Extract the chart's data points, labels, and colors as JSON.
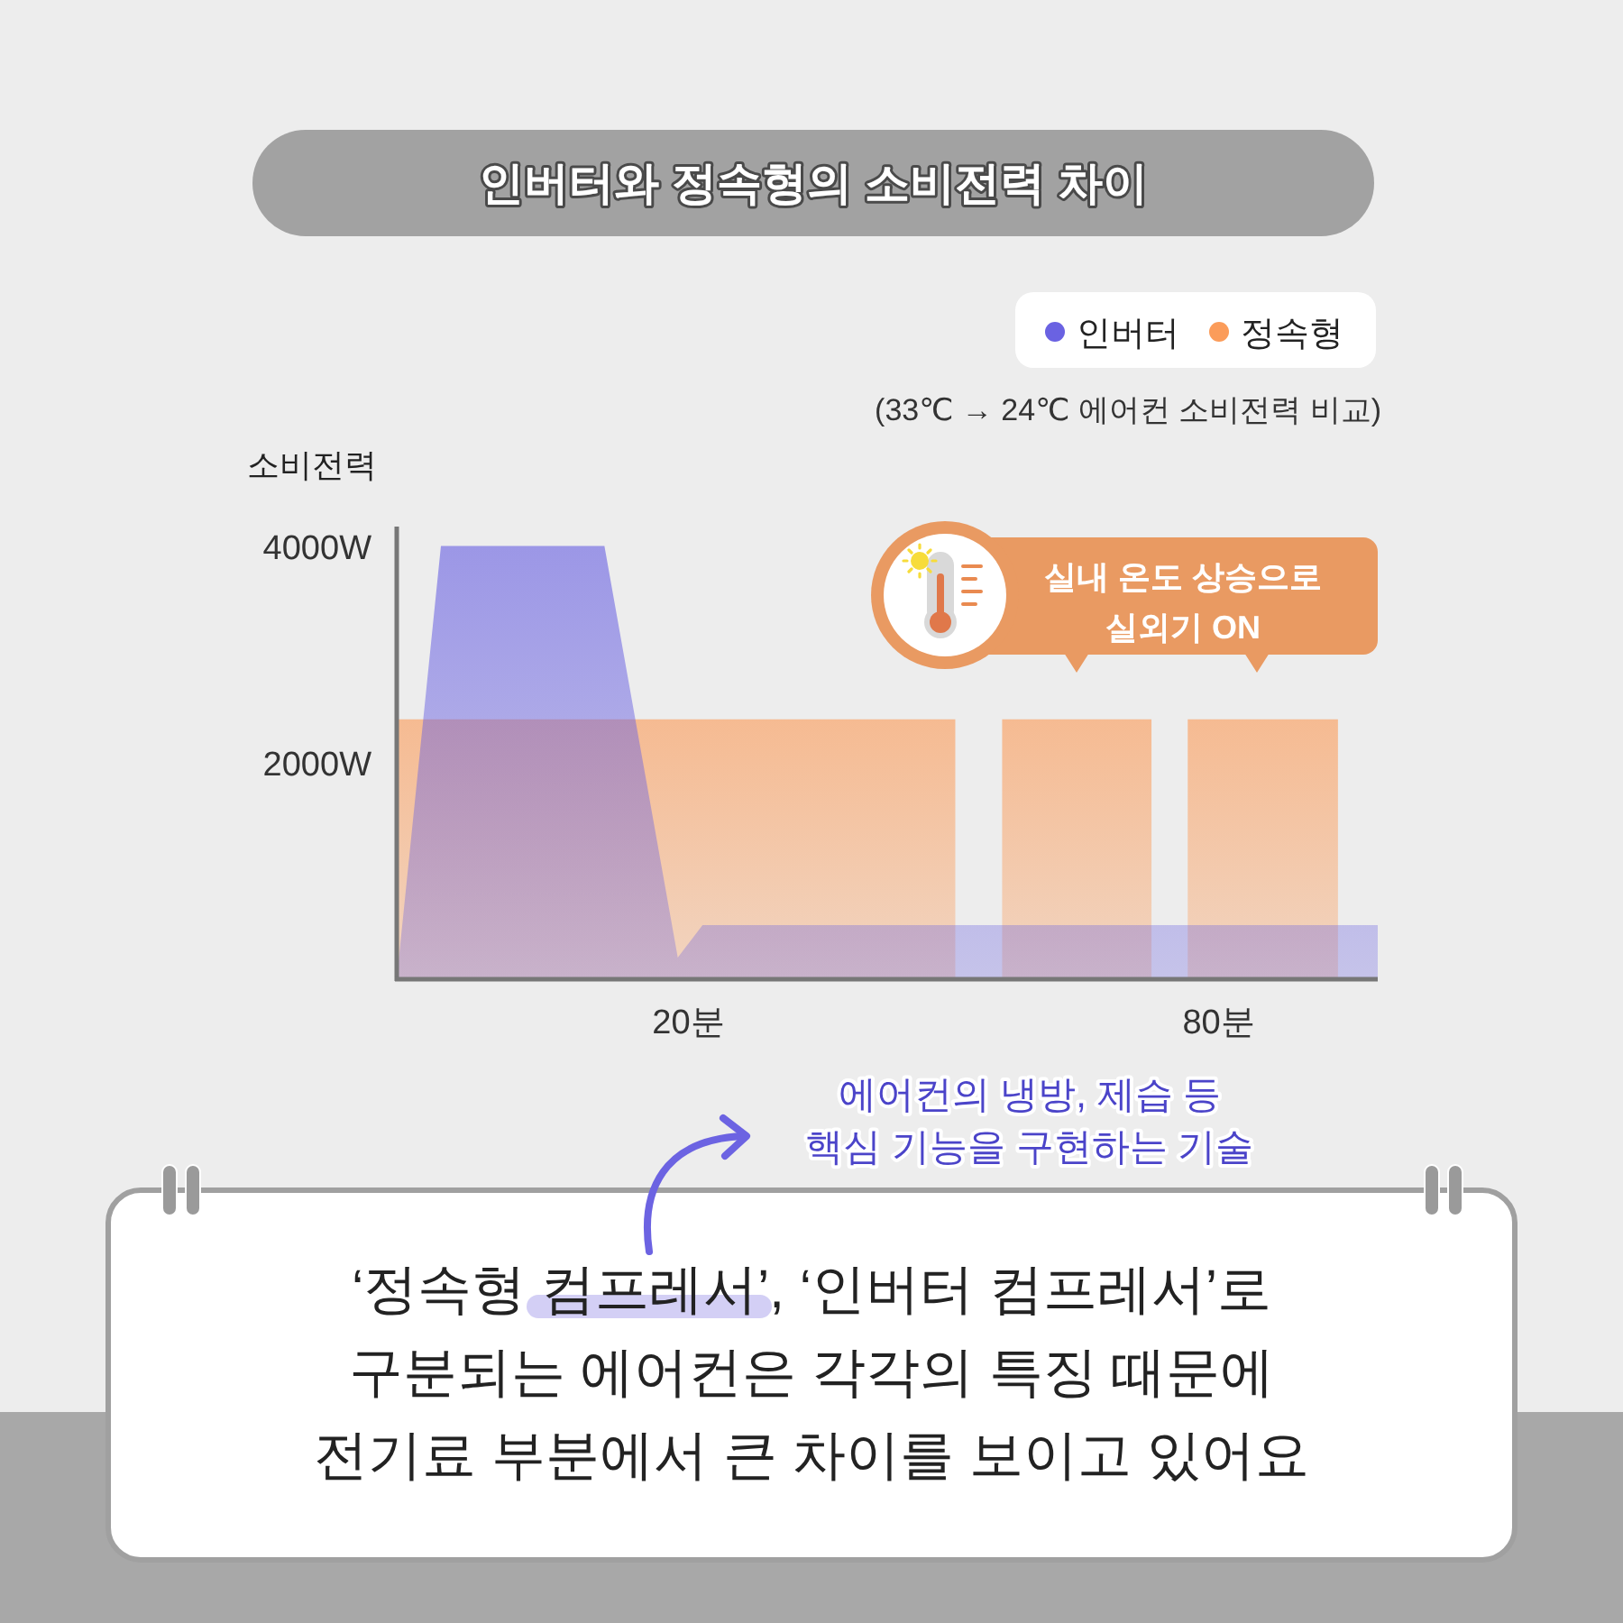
{
  "chart_data": {
    "type": "area",
    "title": "인버터와 정속형의 소비전력 차이",
    "subtitle": "(33℃ → 24℃ 에어컨 소비전력 비교)",
    "ylabel": "소비전력",
    "xlim": [
      -13,
      98
    ],
    "xticks": [
      {
        "value": 20,
        "label": "20분"
      },
      {
        "value": 80,
        "label": "80분"
      }
    ],
    "ylim": [
      0,
      4180
    ],
    "yticks": [
      {
        "value": 2000,
        "label": "2000W"
      },
      {
        "value": 4000,
        "label": "4000W"
      }
    ],
    "legend": "top right",
    "series": [
      {
        "name": "인버터",
        "color": "#6a62e2",
        "x": [
          -13,
          -8,
          10.5,
          18.8,
          21.6,
          98
        ],
        "values": [
          0,
          4000,
          4000,
          200,
          500,
          500
        ]
      },
      {
        "name": "정속형",
        "color": "#fb9c5a",
        "x": [
          -13,
          50.2
        ],
        "values": [
          2400,
          2400
        ]
      },
      {
        "color": "#fb9c5a",
        "x": [
          55.5,
          72.4
        ],
        "values": [
          2400,
          2400
        ]
      },
      {
        "color": "#fb9c5a",
        "x": [
          76.5,
          93.5
        ],
        "values": [
          2400,
          2400
        ]
      }
    ],
    "annotations": [
      "실내 온도 상승으로\n실외기 ON",
      "에어컨의 냉방, 제습 등\n핵심 기능을 구현하는 기술",
      "‘정속형 컴프레서’, ‘인버터 컴프레서’로\n구분되는 에어컨은 각각의 특징 때문에\n전기료 부분에서 큰 차이를 보이고 있어요"
    ]
  }
}
